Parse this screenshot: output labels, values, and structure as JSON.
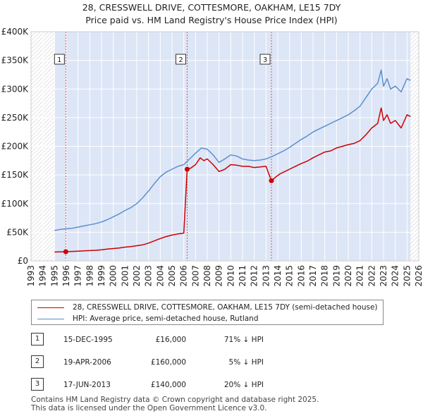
{
  "chart_data": {
    "type": "line",
    "title": "28, CRESSWELL DRIVE, COTTESMORE, OAKHAM, LE15 7DY",
    "subtitle": "Price paid vs. HM Land Registry's House Price Index (HPI)",
    "xlim": [
      1993,
      2026
    ],
    "ylim": [
      0,
      400000
    ],
    "x_ticks": [
      1993,
      1994,
      1995,
      1996,
      1997,
      1998,
      1999,
      2000,
      2001,
      2002,
      2003,
      2004,
      2005,
      2006,
      2007,
      2008,
      2009,
      2010,
      2011,
      2012,
      2013,
      2014,
      2015,
      2016,
      2017,
      2018,
      2019,
      2020,
      2021,
      2022,
      2023,
      2024,
      2025,
      2026
    ],
    "y_ticks": [
      {
        "value": 0,
        "label": "£0"
      },
      {
        "value": 50000,
        "label": "£50K"
      },
      {
        "value": 100000,
        "label": "£100K"
      },
      {
        "value": 150000,
        "label": "£150K"
      },
      {
        "value": 200000,
        "label": "£200K"
      },
      {
        "value": 250000,
        "label": "£250K"
      },
      {
        "value": 300000,
        "label": "£300K"
      },
      {
        "value": 350000,
        "label": "£350K"
      },
      {
        "value": 400000,
        "label": "£400K"
      }
    ],
    "data_range": [
      1995.0,
      2025.3
    ],
    "series": [
      {
        "name": "28, CRESSWELL DRIVE, COTTESMORE, OAKHAM, LE15 7DY (semi-detached house)",
        "color": "#cc0000",
        "x": [
          1995.0,
          1995.96,
          1996.5,
          1997.0,
          1997.5,
          1998.0,
          1998.5,
          1999.0,
          1999.5,
          2000.0,
          2000.5,
          2001.0,
          2001.5,
          2002.0,
          2002.5,
          2003.0,
          2003.5,
          2004.0,
          2004.5,
          2005.0,
          2005.5,
          2006.0,
          2006.29,
          2006.6,
          2007.0,
          2007.4,
          2007.7,
          2008.0,
          2008.5,
          2009.0,
          2009.5,
          2010.0,
          2010.5,
          2011.0,
          2011.5,
          2012.0,
          2012.5,
          2013.0,
          2013.46,
          2013.8,
          2014.2,
          2014.6,
          2015.0,
          2015.5,
          2016.0,
          2016.5,
          2017.0,
          2017.5,
          2018.0,
          2018.5,
          2019.0,
          2019.5,
          2020.0,
          2020.5,
          2021.0,
          2021.5,
          2022.0,
          2022.5,
          2022.8,
          2023.0,
          2023.3,
          2023.6,
          2024.0,
          2024.5,
          2025.0,
          2025.3
        ],
        "y": [
          15500,
          16000,
          16500,
          17000,
          17500,
          18000,
          18500,
          19500,
          20500,
          21500,
          22500,
          24000,
          25000,
          26500,
          28000,
          31000,
          35000,
          39000,
          42500,
          45000,
          47000,
          48500,
          160000,
          162000,
          168000,
          180000,
          175000,
          178000,
          168000,
          156000,
          160000,
          168000,
          167000,
          165000,
          165000,
          163000,
          164000,
          165000,
          140000,
          146000,
          152000,
          156000,
          160000,
          165000,
          170000,
          174000,
          180000,
          185000,
          190000,
          192000,
          197000,
          200000,
          203000,
          205000,
          210000,
          220000,
          232000,
          240000,
          267000,
          245000,
          255000,
          240000,
          245000,
          232000,
          255000,
          252000
        ]
      },
      {
        "name": "HPI: Average price, semi-detached house, Rutland",
        "color": "#5b8fd0",
        "x": [
          1995.0,
          1995.5,
          1996.0,
          1996.5,
          1997.0,
          1997.5,
          1998.0,
          1998.5,
          1999.0,
          1999.5,
          2000.0,
          2000.5,
          2001.0,
          2001.5,
          2002.0,
          2002.5,
          2003.0,
          2003.5,
          2004.0,
          2004.5,
          2005.0,
          2005.5,
          2006.0,
          2006.5,
          2007.0,
          2007.5,
          2008.0,
          2008.5,
          2009.0,
          2009.5,
          2010.0,
          2010.5,
          2011.0,
          2011.5,
          2012.0,
          2012.5,
          2013.0,
          2013.5,
          2014.0,
          2014.5,
          2015.0,
          2015.5,
          2016.0,
          2016.5,
          2017.0,
          2017.5,
          2018.0,
          2018.5,
          2019.0,
          2019.5,
          2020.0,
          2020.5,
          2021.0,
          2021.5,
          2022.0,
          2022.5,
          2022.8,
          2023.0,
          2023.3,
          2023.6,
          2024.0,
          2024.5,
          2025.0,
          2025.3
        ],
        "y": [
          53000,
          55000,
          56000,
          57000,
          59000,
          61000,
          63000,
          65000,
          68000,
          72000,
          77000,
          82000,
          88000,
          93000,
          100000,
          110000,
          122000,
          135000,
          147000,
          155000,
          160000,
          165000,
          168000,
          178000,
          188000,
          197000,
          195000,
          185000,
          172000,
          178000,
          185000,
          183000,
          178000,
          176000,
          175000,
          176000,
          178000,
          182000,
          187000,
          192000,
          198000,
          205000,
          212000,
          218000,
          225000,
          230000,
          235000,
          240000,
          245000,
          250000,
          255000,
          262000,
          270000,
          285000,
          300000,
          310000,
          333000,
          305000,
          318000,
          300000,
          305000,
          295000,
          318000,
          315000
        ]
      }
    ],
    "markers": [
      {
        "label": "1",
        "x": 1995.96,
        "y": 16000
      },
      {
        "label": "2",
        "x": 2006.29,
        "y": 160000
      },
      {
        "label": "3",
        "x": 2013.46,
        "y": 140000
      }
    ]
  },
  "legend": {
    "property": "28, CRESSWELL DRIVE, COTTESMORE, OAKHAM, LE15 7DY (semi-detached house)",
    "hpi": "HPI: Average price, semi-detached house, Rutland"
  },
  "transactions": [
    {
      "num": "1",
      "date": "15-DEC-1995",
      "price": "£16,000",
      "hpi": "71% ↓ HPI"
    },
    {
      "num": "2",
      "date": "19-APR-2006",
      "price": "£160,000",
      "hpi": "5% ↓ HPI"
    },
    {
      "num": "3",
      "date": "17-JUN-2013",
      "price": "£140,000",
      "hpi": "20% ↓ HPI"
    }
  ],
  "footer": {
    "line1": "Contains HM Land Registry data © Crown copyright and database right 2025.",
    "line2": "This data is licensed under the Open Government Licence v3.0."
  },
  "colors": {
    "property": "#cc0000",
    "hpi": "#5b8fd0",
    "plot_bg": "#dde6f6"
  }
}
